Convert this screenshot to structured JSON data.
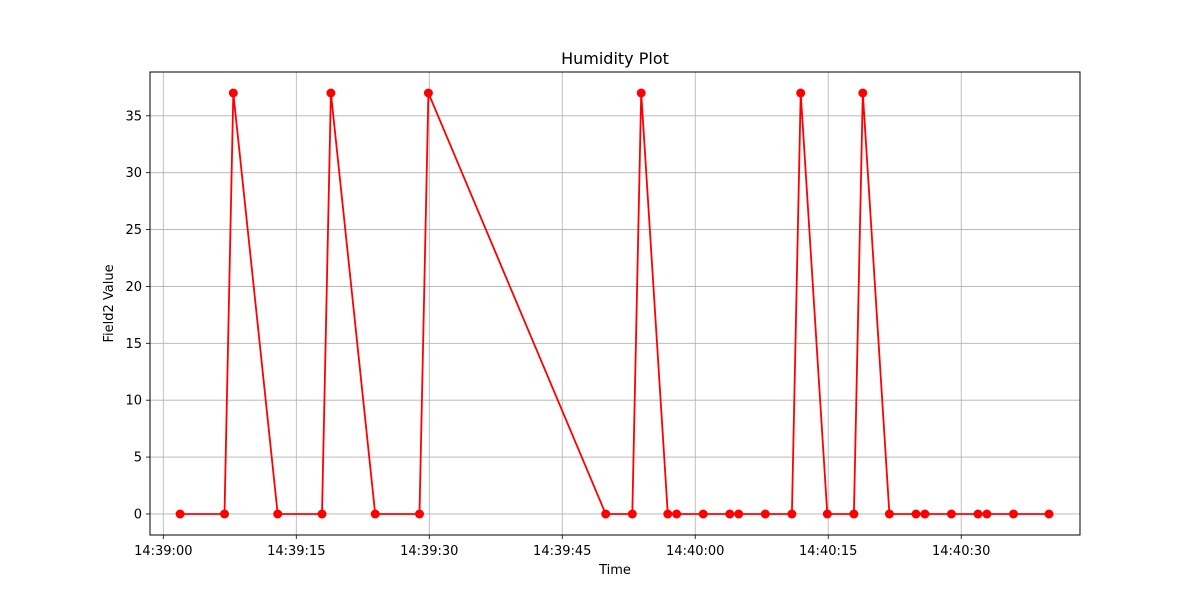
{
  "chart_data": {
    "type": "line",
    "title": "Humidity Plot",
    "xlabel": "Time",
    "ylabel": "Field2 Value",
    "grid": true,
    "x_ticks": [
      "14:39:00",
      "14:39:15",
      "14:39:30",
      "14:39:45",
      "14:40:00",
      "14:40:15",
      "14:40:30"
    ],
    "y_ticks": [
      "0",
      "5",
      "10",
      "15",
      "20",
      "25",
      "30",
      "35"
    ],
    "xlim": [
      "14:38:58.5",
      "14:40:43.4"
    ],
    "ylim": [
      -1.85,
      38.85
    ],
    "series": [
      {
        "color": "#ff0000",
        "marker": "circle",
        "points": [
          {
            "x": "14:39:01.9",
            "y": 0
          },
          {
            "x": "14:39:06.9",
            "y": 0
          },
          {
            "x": "14:39:07.9",
            "y": 37
          },
          {
            "x": "14:39:12.9",
            "y": 0
          },
          {
            "x": "14:39:17.9",
            "y": 0
          },
          {
            "x": "14:39:18.9",
            "y": 37
          },
          {
            "x": "14:39:23.9",
            "y": 0
          },
          {
            "x": "14:39:28.9",
            "y": 0
          },
          {
            "x": "14:39:29.9",
            "y": 37
          },
          {
            "x": "14:39:49.9",
            "y": 0
          },
          {
            "x": "14:39:52.9",
            "y": 0
          },
          {
            "x": "14:39:53.9",
            "y": 37
          },
          {
            "x": "14:39:56.9",
            "y": 0
          },
          {
            "x": "14:39:57.9",
            "y": 0
          },
          {
            "x": "14:40:00.9",
            "y": 0
          },
          {
            "x": "14:40:03.9",
            "y": 0
          },
          {
            "x": "14:40:04.9",
            "y": 0
          },
          {
            "x": "14:40:07.9",
            "y": 0
          },
          {
            "x": "14:40:10.9",
            "y": 0
          },
          {
            "x": "14:40:11.9",
            "y": 37
          },
          {
            "x": "14:40:14.9",
            "y": 0
          },
          {
            "x": "14:40:17.9",
            "y": 0
          },
          {
            "x": "14:40:18.9",
            "y": 37
          },
          {
            "x": "14:40:21.9",
            "y": 0
          },
          {
            "x": "14:40:24.9",
            "y": 0
          },
          {
            "x": "14:40:25.9",
            "y": 0
          },
          {
            "x": "14:40:28.9",
            "y": 0
          },
          {
            "x": "14:40:31.9",
            "y": 0
          },
          {
            "x": "14:40:32.9",
            "y": 0
          },
          {
            "x": "14:40:35.9",
            "y": 0
          },
          {
            "x": "14:40:39.9",
            "y": 0
          }
        ]
      }
    ]
  }
}
